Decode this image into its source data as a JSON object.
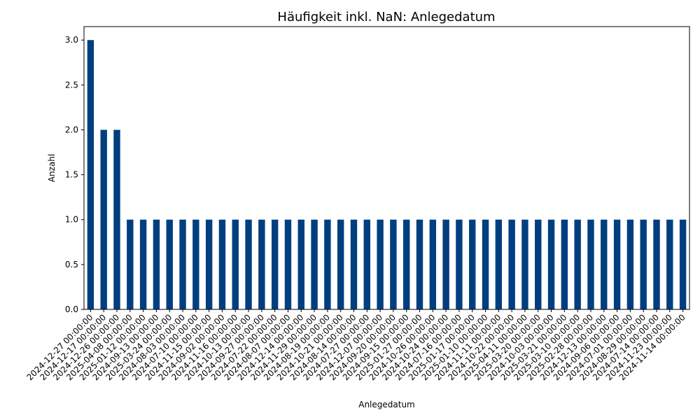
{
  "chart_data": {
    "type": "bar",
    "title": "Häufigkeit inkl. NaN: Anlegedatum",
    "xlabel": "Anlegedatum",
    "ylabel": "Anzahl",
    "ylim": [
      0,
      3.15
    ],
    "yticks": [
      0.0,
      0.5,
      1.0,
      1.5,
      2.0,
      2.5,
      3.0
    ],
    "ytick_labels": [
      "0.0",
      "0.5",
      "1.0",
      "1.5",
      "2.0",
      "2.5",
      "3.0"
    ],
    "grid": false,
    "bar_color": "#003f7f",
    "categories": [
      "2024-12-27 00:00:00",
      "2024-12-17 00:00:00",
      "2024-12-26 00:00:00",
      "2025-04-08 00:00:00",
      "2025-01-12 00:00:00",
      "2024-09-13 00:00:00",
      "2025-03-24 00:00:00",
      "2024-08-03 00:00:00",
      "2024-07-10 00:00:00",
      "2024-11-15 00:00:00",
      "2024-09-02 00:00:00",
      "2024-11-16 00:00:00",
      "2024-10-13 00:00:00",
      "2024-09-27 00:00:00",
      "2024-07-22 00:00:00",
      "2024-08-07 00:00:00",
      "2024-12-14 00:00:00",
      "2024-11-29 00:00:00",
      "2024-08-19 00:00:00",
      "2024-10-21 00:00:00",
      "2024-08-14 00:00:00",
      "2024-07-27 00:00:00",
      "2024-12-07 00:00:00",
      "2024-09-20 00:00:00",
      "2024-09-15 00:00:00",
      "2025-01-27 00:00:00",
      "2024-10-26 00:00:00",
      "2024-10-24 00:00:00",
      "2024-07-16 00:00:00",
      "2025-01-17 00:00:00",
      "2025-01-10 00:00:00",
      "2024-11-11 00:00:00",
      "2024-10-22 00:00:00",
      "2025-04-11 00:00:00",
      "2025-03-20 00:00:00",
      "2024-10-03 00:00:00",
      "2025-03-21 00:00:00",
      "2025-03-10 00:00:00",
      "2025-02-28 00:00:00",
      "2024-12-13 00:00:00",
      "2024-09-06 00:00:00",
      "2024-07-01 00:00:00",
      "2024-08-29 00:00:00",
      "2024-07-14 00:00:00",
      "2024-11-23 00:00:00",
      "2024-11-14 00:00:00"
    ],
    "values": [
      3,
      2,
      2,
      1,
      1,
      1,
      1,
      1,
      1,
      1,
      1,
      1,
      1,
      1,
      1,
      1,
      1,
      1,
      1,
      1,
      1,
      1,
      1,
      1,
      1,
      1,
      1,
      1,
      1,
      1,
      1,
      1,
      1,
      1,
      1,
      1,
      1,
      1,
      1,
      1,
      1,
      1,
      1,
      1,
      1,
      1
    ]
  }
}
